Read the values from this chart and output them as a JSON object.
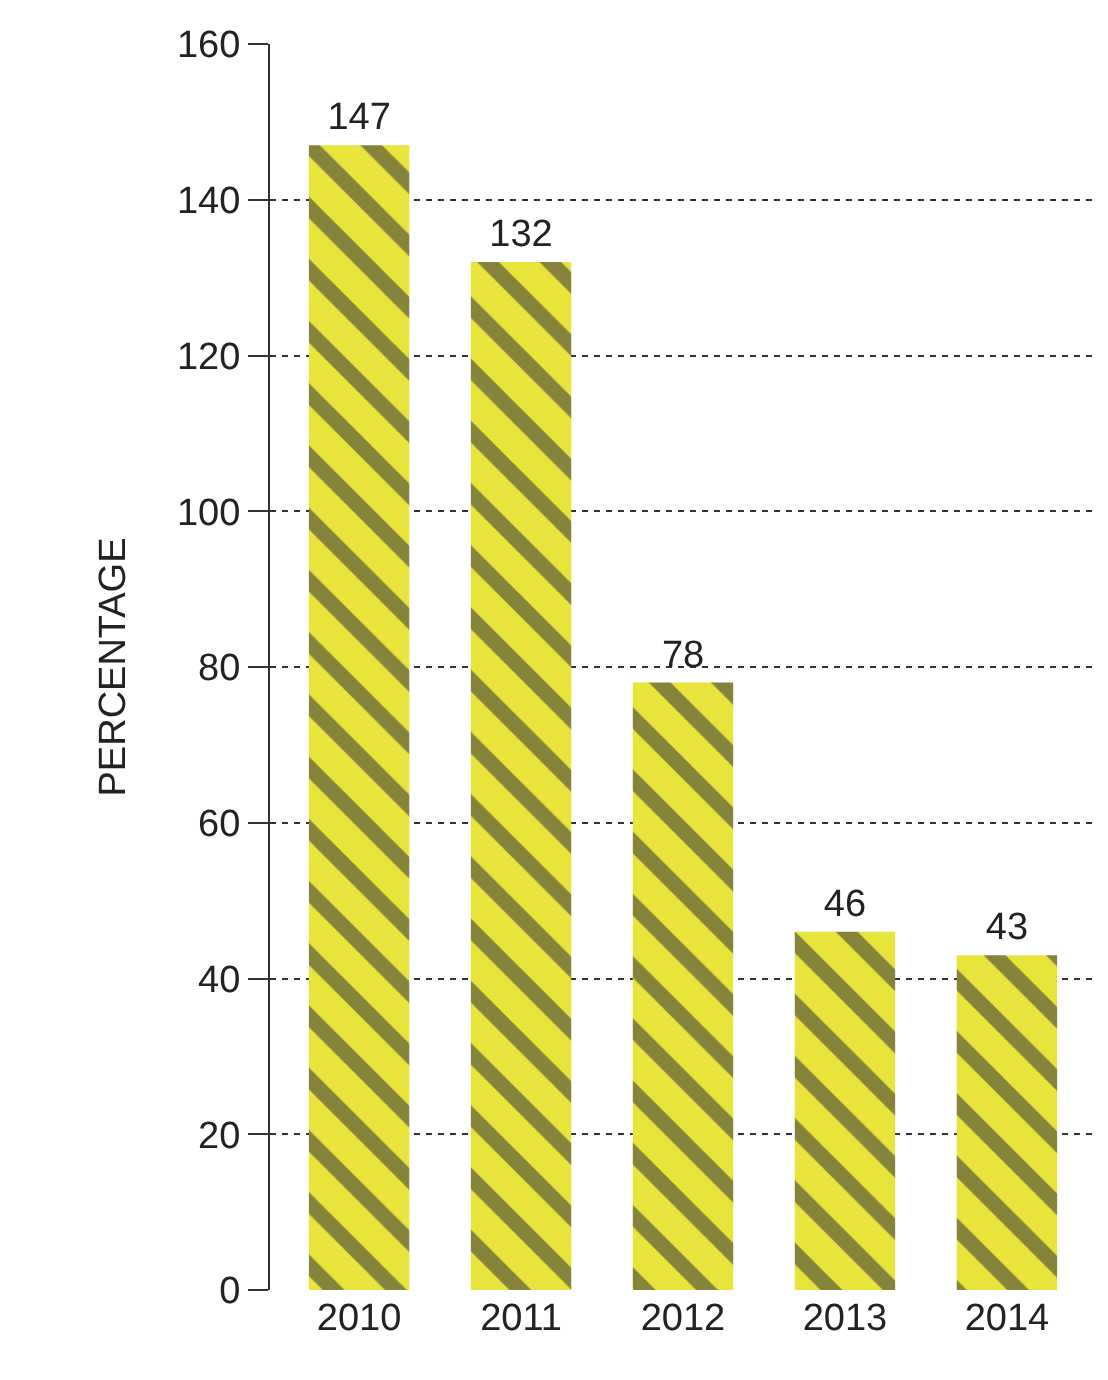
{
  "chart_data": {
    "type": "bar",
    "ylabel": "PERCENTAGE",
    "categories": [
      "2010",
      "2011",
      "2012",
      "2013",
      "2014"
    ],
    "values": [
      147,
      132,
      78,
      46,
      43
    ],
    "color": "#e8e43c",
    "ylim": [
      0,
      160
    ],
    "yticks": [
      0,
      20,
      40,
      60,
      80,
      100,
      120,
      140,
      160
    ],
    "grid": "y",
    "data_labels": true,
    "legend": false
  }
}
